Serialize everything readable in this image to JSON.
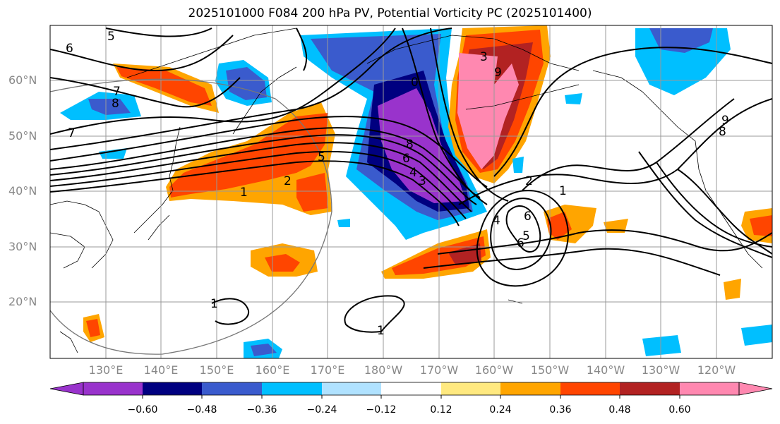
{
  "title": "2025101000 F084 200 hPa PV, Potential Vorticity PC (2025101400)",
  "lat_labels": [
    "60°N",
    "50°N",
    "40°N",
    "30°N",
    "20°N"
  ],
  "lon_labels": [
    "130°E",
    "140°E",
    "150°E",
    "160°E",
    "170°E",
    "180°W",
    "170°W",
    "160°W",
    "150°W",
    "140°W",
    "130°W",
    "120°W"
  ],
  "colorbar": {
    "tick_labels": [
      "−0.60",
      "−0.48",
      "−0.36",
      "−0.24",
      "−0.12",
      "0.12",
      "0.24",
      "0.36",
      "0.48",
      "0.60"
    ],
    "colors": [
      "#9933cc",
      "#000080",
      "#3a5bcd",
      "#00bfff",
      "#b0e2ff",
      "#ffffff",
      "#ffe980",
      "#ffa500",
      "#ff4500",
      "#b22222",
      "#ff88b0"
    ]
  },
  "contour_labels": [
    "5",
    "6",
    "7",
    "8",
    "7",
    "1",
    "2",
    "5",
    "0",
    "8",
    "6",
    "4",
    "3",
    "9",
    "2",
    "1",
    "6",
    "9",
    "8",
    "3",
    "4",
    "5",
    "6",
    "1",
    "1"
  ]
}
